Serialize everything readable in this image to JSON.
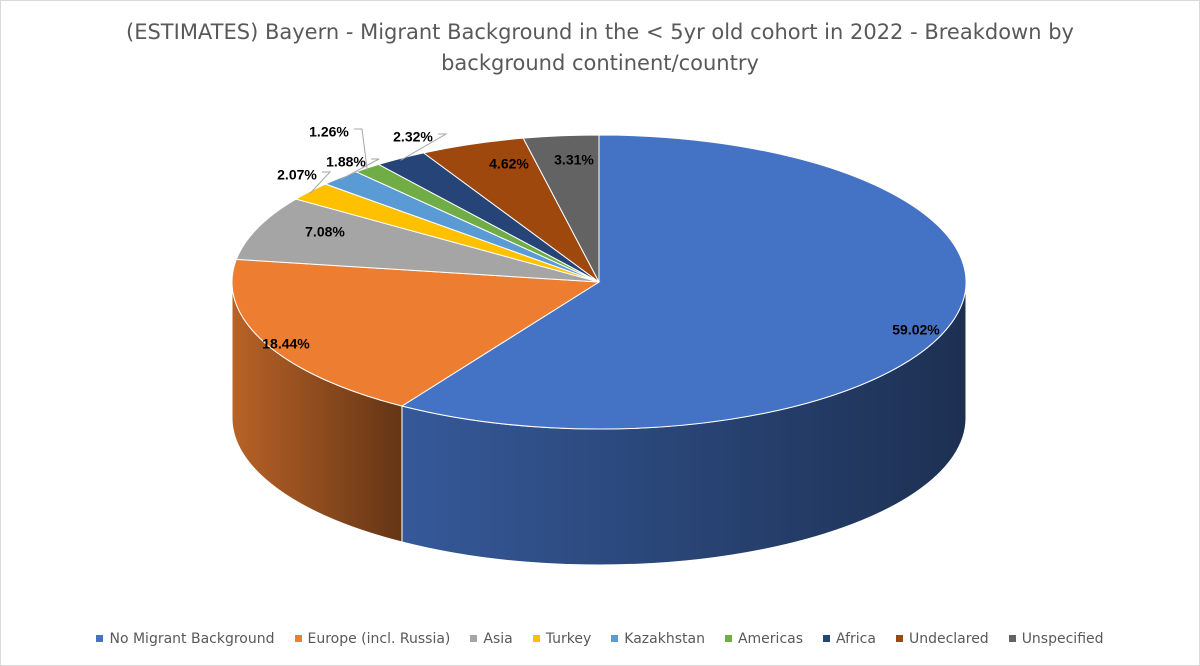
{
  "chart_data": {
    "type": "pie",
    "style": "3d",
    "title": "(ESTIMATES) Bayern - Migrant Background in the < 5yr old cohort in 2022 - Breakdown by background continent/country",
    "legend_position": "bottom",
    "slices": [
      {
        "label": "No Migrant Background",
        "value": 59.02,
        "value_label": "59.02%",
        "color": "#4472C4"
      },
      {
        "label": "Europe (incl. Russia)",
        "value": 18.44,
        "value_label": "18.44%",
        "color": "#ED7D31"
      },
      {
        "label": "Asia",
        "value": 7.08,
        "value_label": "7.08%",
        "color": "#A5A5A5"
      },
      {
        "label": "Turkey",
        "value": 2.07,
        "value_label": "2.07%",
        "color": "#FFC000"
      },
      {
        "label": "Kazakhstan",
        "value": 1.88,
        "value_label": "1.88%",
        "color": "#5B9BD5"
      },
      {
        "label": "Americas",
        "value": 1.26,
        "value_label": "1.26%",
        "color": "#70AD47"
      },
      {
        "label": "Africa",
        "value": 2.32,
        "value_label": "2.32%",
        "color": "#264478"
      },
      {
        "label": "Undeclared",
        "value": 4.62,
        "value_label": "4.62%",
        "color": "#9E480E"
      },
      {
        "label": "Unspecified",
        "value": 3.31,
        "value_label": "3.31%",
        "color": "#636363"
      }
    ]
  }
}
